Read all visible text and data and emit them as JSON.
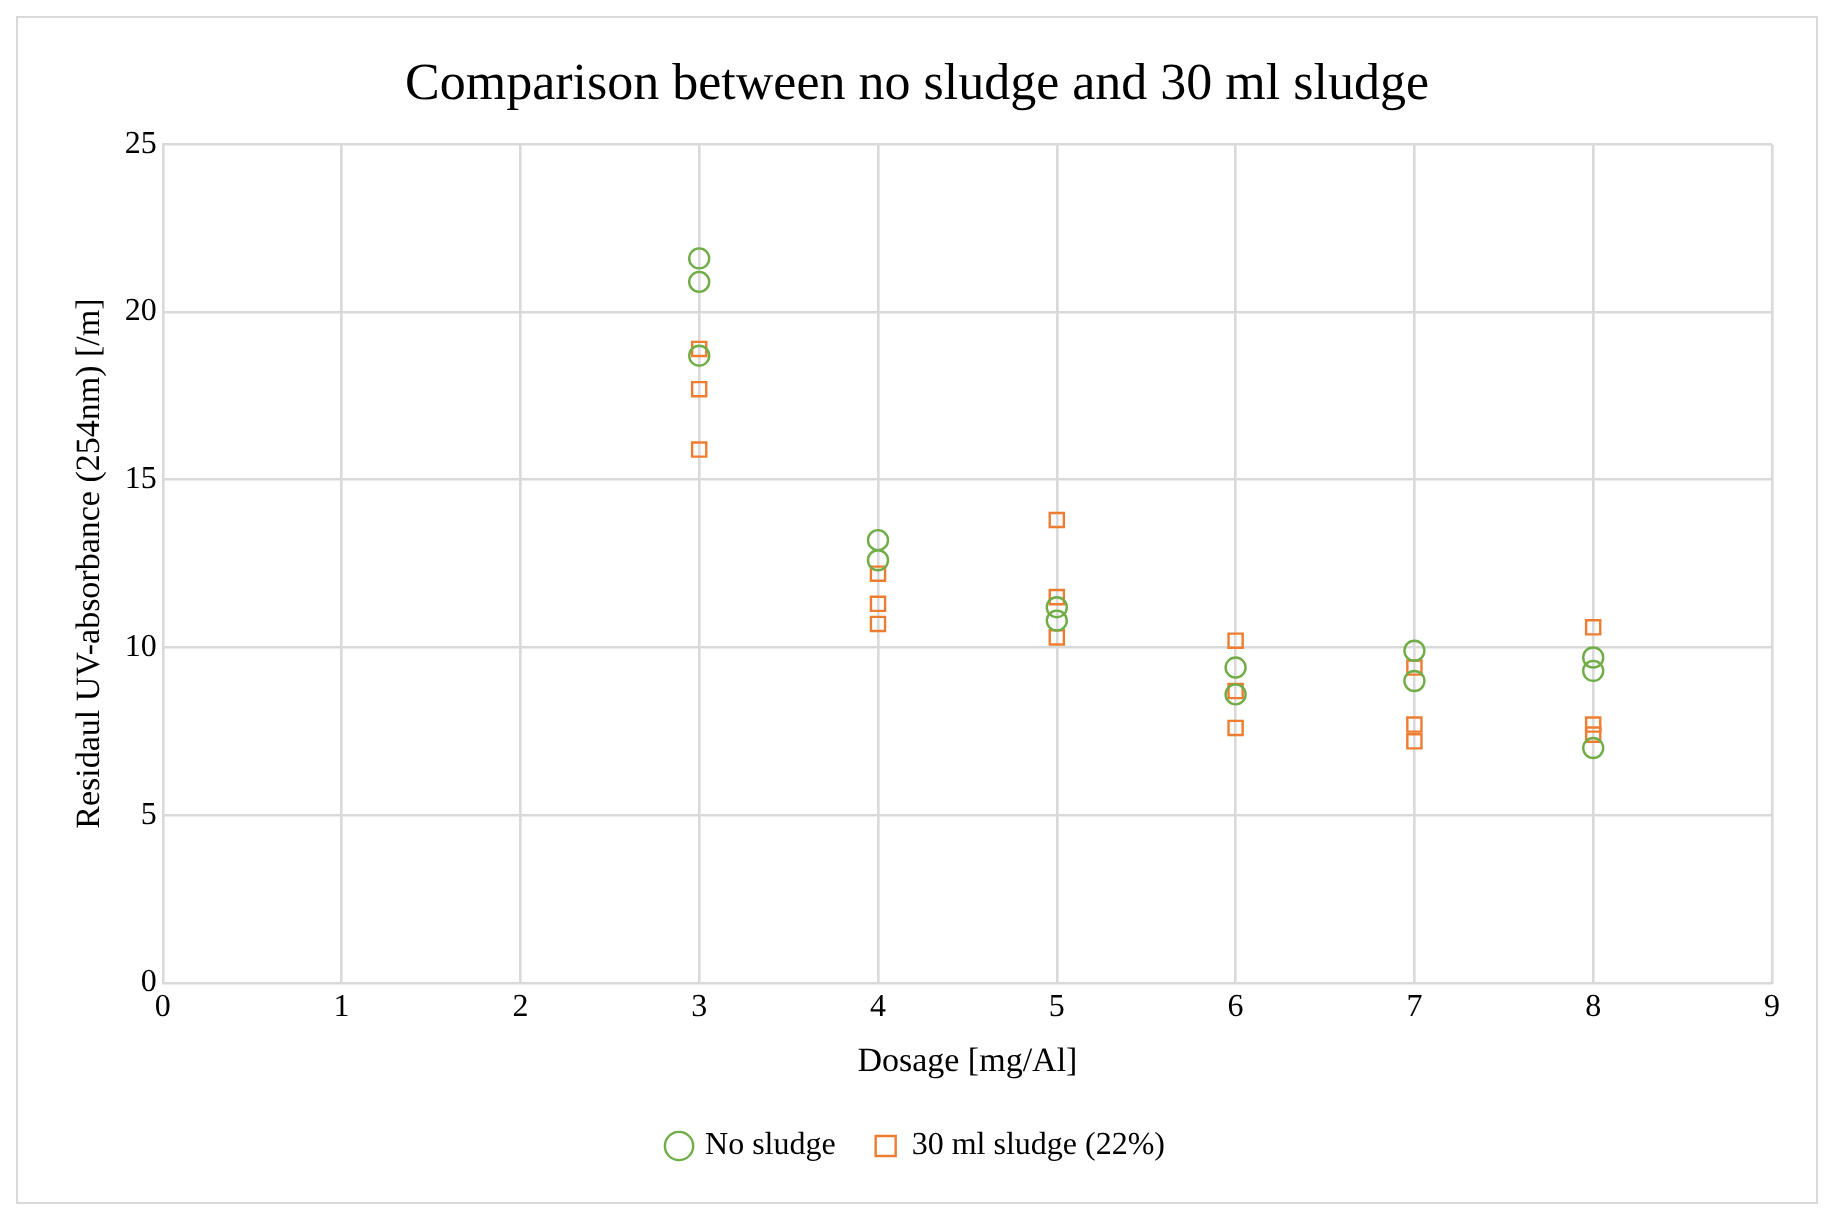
{
  "chart_data": {
    "type": "scatter",
    "title": "Comparison between no sludge and 30 ml sludge",
    "xlabel": "Dosage [mg/Al]",
    "ylabel": "Residaul UV-absorbance (254nm) [/m]",
    "xlim": [
      0,
      9
    ],
    "xticks": [
      0,
      1,
      2,
      3,
      4,
      5,
      6,
      7,
      8,
      9
    ],
    "ylim": [
      0,
      25
    ],
    "yticks": [
      0,
      5,
      10,
      15,
      20,
      25
    ],
    "grid": true,
    "legend": "bottom",
    "series": [
      {
        "name": "No sludge",
        "color": "#70ad47",
        "marker": "circle",
        "x": [
          3,
          3,
          3,
          4,
          4,
          5,
          5,
          6,
          6,
          7,
          7,
          8,
          8,
          8
        ],
        "values": [
          21.6,
          20.9,
          18.7,
          13.2,
          12.6,
          11.2,
          10.8,
          9.4,
          8.6,
          9.9,
          9.0,
          9.7,
          9.3,
          7.0
        ]
      },
      {
        "name": "30 ml sludge (22%)",
        "color": "#ed7d31",
        "marker": "square",
        "x": [
          3,
          3,
          3,
          4,
          4,
          4,
          5,
          5,
          5,
          6,
          6,
          6,
          7,
          7,
          7,
          8,
          8,
          8
        ],
        "values": [
          18.9,
          17.7,
          15.9,
          12.2,
          11.3,
          10.7,
          13.8,
          11.5,
          10.3,
          10.2,
          8.7,
          7.6,
          9.4,
          7.7,
          7.2,
          10.6,
          7.7,
          7.4
        ]
      }
    ]
  }
}
